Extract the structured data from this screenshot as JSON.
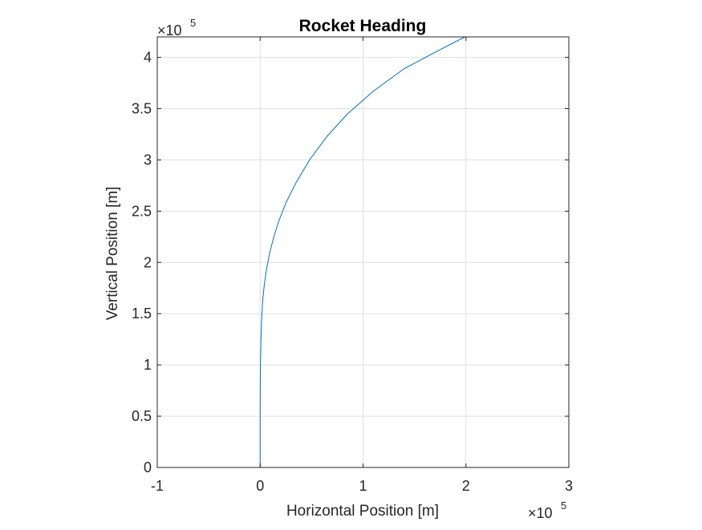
{
  "chart_data": {
    "type": "line",
    "title": "Rocket Heading",
    "xlabel": "Horizontal Position [m]",
    "ylabel": "Vertical Position [m]",
    "x_exponent": {
      "base": "×10",
      "power": "5"
    },
    "y_exponent": {
      "base": "×10",
      "power": "5"
    },
    "xlim": [
      -100000,
      300000
    ],
    "ylim": [
      0,
      420000
    ],
    "x_ticks": [
      -100000,
      0,
      100000,
      200000,
      300000
    ],
    "x_tick_labels": [
      "-1",
      "0",
      "1",
      "2",
      "3"
    ],
    "y_ticks": [
      0,
      50000,
      100000,
      150000,
      200000,
      250000,
      300000,
      350000,
      400000
    ],
    "y_tick_labels": [
      "0",
      "0.5",
      "1",
      "1.5",
      "2",
      "2.5",
      "3",
      "3.5",
      "4"
    ],
    "grid": true,
    "series": [
      {
        "color": "#0072BD",
        "x": [
          0,
          0,
          100,
          300,
          800,
          1500,
          2500,
          4000,
          6000,
          9000,
          13000,
          18000,
          25000,
          35000,
          48000,
          65000,
          85000,
          110000,
          140000,
          170000,
          199000
        ],
        "y": [
          0,
          50000,
          80000,
          100000,
          125000,
          145000,
          163000,
          178000,
          192000,
          208000,
          224000,
          240000,
          258000,
          278000,
          300000,
          323000,
          345000,
          367000,
          389000,
          405000,
          420000
        ]
      }
    ]
  }
}
